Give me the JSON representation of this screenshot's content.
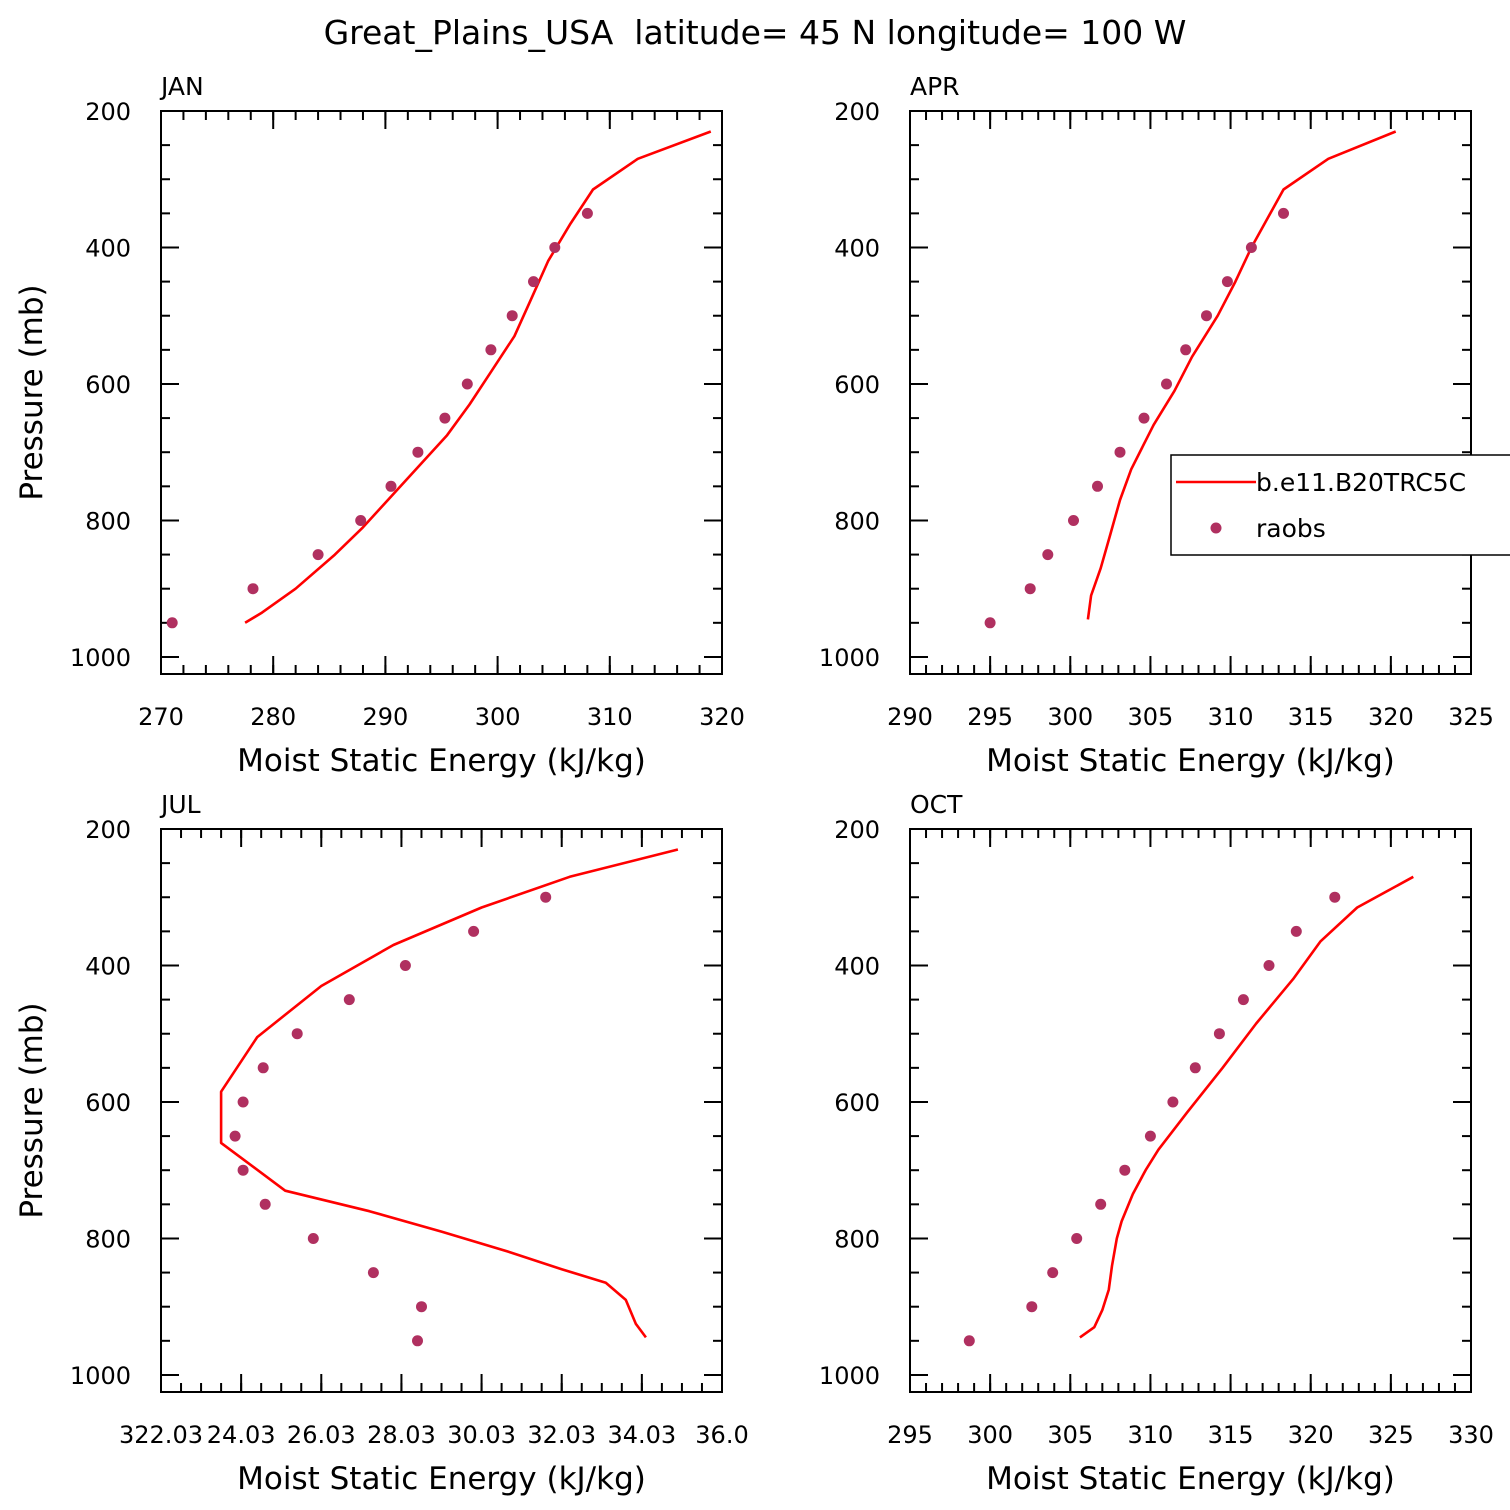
{
  "figure": {
    "title": "Great_Plains_USA  latitude= 45 N longitude= 100 W",
    "colors": {
      "model": "#ff0000",
      "obs": "#b03060",
      "axis": "#000000"
    }
  },
  "chart_data": [
    {
      "type": "scatter",
      "panel_title": "JAN",
      "xlabel": "Moist Static Energy (kJ/kg)",
      "ylabel": "Pressure (mb)",
      "xlim": [
        270,
        320
      ],
      "ylim": [
        1025,
        200
      ],
      "xticks": [
        270,
        280,
        290,
        300,
        310,
        320
      ],
      "xtick_labels": [
        "270",
        "280",
        "290",
        "300",
        "310",
        "320"
      ],
      "xminor": 2,
      "yticks": [
        200,
        400,
        600,
        800,
        1000
      ],
      "ytick_labels": [
        "200",
        "400",
        "600",
        "800",
        "1000"
      ],
      "series": [
        {
          "kind": "line",
          "x": [
            277.5,
            279,
            282,
            285.5,
            288,
            290.5,
            293,
            295.5,
            297.5,
            299.5,
            301.5,
            303,
            304.5,
            306.5,
            308.5,
            312.5,
            319
          ],
          "y": [
            950,
            935,
            900,
            850,
            810,
            765,
            720,
            675,
            630,
            580,
            530,
            475,
            420,
            365,
            315,
            270,
            230
          ]
        },
        {
          "kind": "points",
          "x": [
            271,
            278.2,
            284,
            287.8,
            290.5,
            292.9,
            295.3,
            297.3,
            299.4,
            301.3,
            303.2,
            305.1,
            308
          ],
          "y": [
            950,
            900,
            850,
            800,
            750,
            700,
            650,
            600,
            550,
            500,
            450,
            400,
            350
          ]
        }
      ]
    },
    {
      "type": "scatter",
      "panel_title": "APR",
      "xlabel": "Moist Static Energy (kJ/kg)",
      "ylabel": "",
      "xlim": [
        290,
        325
      ],
      "ylim": [
        1025,
        200
      ],
      "xticks": [
        290,
        295,
        300,
        305,
        310,
        315,
        320,
        325
      ],
      "xtick_labels": [
        "290",
        "295",
        "300",
        "305",
        "310",
        "315",
        "320",
        "325"
      ],
      "xminor": 1,
      "yticks": [
        200,
        400,
        600,
        800,
        1000
      ],
      "ytick_labels": [
        "200",
        "400",
        "600",
        "800",
        "1000"
      ],
      "legend": {
        "location": "right",
        "entries": [
          "b.e11.B20TRC5C",
          "raobs"
        ]
      },
      "series": [
        {
          "name": "b.e11.B20TRC5C",
          "kind": "line",
          "x": [
            301.1,
            301.3,
            301.9,
            302.5,
            303.1,
            303.8,
            305.2,
            306.5,
            307.6,
            309.2,
            310.3,
            311.3,
            313.3,
            316.1,
            320.3
          ],
          "y": [
            945,
            910,
            870,
            820,
            770,
            725,
            660,
            610,
            560,
            500,
            450,
            400,
            315,
            270,
            230
          ]
        },
        {
          "name": "raobs",
          "kind": "points",
          "x": [
            295,
            297.5,
            298.6,
            300.2,
            301.7,
            303.1,
            304.6,
            306,
            307.2,
            308.5,
            309.8,
            311.3,
            313.3
          ],
          "y": [
            950,
            900,
            850,
            800,
            750,
            700,
            650,
            600,
            550,
            500,
            450,
            400,
            350
          ]
        }
      ]
    },
    {
      "type": "scatter",
      "panel_title": "JUL",
      "xlabel": "Moist Static Energy (kJ/kg)",
      "ylabel": "Pressure (mb)",
      "xlim": [
        322.03,
        336.03
      ],
      "ylim": [
        1025,
        200
      ],
      "xticks": [
        322.03,
        324.03,
        326.03,
        328.03,
        330.03,
        332.03,
        334.03,
        336.03
      ],
      "xtick_labels": [
        "322.03",
        "24.03",
        "26.03",
        "28.03",
        "30.03",
        "32.03",
        "34.03",
        "36.0"
      ],
      "xminor": 0.5,
      "yticks": [
        200,
        400,
        600,
        800,
        1000
      ],
      "ytick_labels": [
        "200",
        "400",
        "600",
        "800",
        "1000"
      ],
      "series": [
        {
          "kind": "line",
          "x": [
            334.13,
            333.88,
            333.63,
            333.13,
            332.03,
            330.73,
            329.03,
            327.23,
            325.13,
            323.53,
            323.53,
            324.43,
            326.03,
            327.83,
            330.03,
            332.23,
            334.93
          ],
          "y": [
            945,
            925,
            890,
            865,
            845,
            820,
            790,
            760,
            730,
            660,
            585,
            505,
            430,
            370,
            315,
            270,
            230
          ]
        },
        {
          "kind": "points",
          "x": [
            328.43,
            328.53,
            327.33,
            325.83,
            324.63,
            324.08,
            323.88,
            324.08,
            324.58,
            325.43,
            326.73,
            328.13,
            329.83,
            331.63
          ],
          "y": [
            950,
            900,
            850,
            800,
            750,
            700,
            650,
            600,
            550,
            500,
            450,
            400,
            350,
            300
          ]
        }
      ]
    },
    {
      "type": "scatter",
      "panel_title": "OCT",
      "xlabel": "Moist Static Energy (kJ/kg)",
      "ylabel": "",
      "xlim": [
        295,
        330
      ],
      "ylim": [
        1025,
        200
      ],
      "xticks": [
        295,
        300,
        305,
        310,
        315,
        320,
        325,
        330
      ],
      "xtick_labels": [
        "295",
        "300",
        "305",
        "310",
        "315",
        "320",
        "325",
        "330"
      ],
      "xminor": 1,
      "yticks": [
        200,
        400,
        600,
        800,
        1000
      ],
      "ytick_labels": [
        "200",
        "400",
        "600",
        "800",
        "1000"
      ],
      "series": [
        {
          "kind": "line",
          "x": [
            305.6,
            306.5,
            307,
            307.4,
            307.6,
            307.9,
            308.2,
            308.9,
            309.7,
            310.5,
            312.3,
            314.5,
            316.6,
            318.9,
            320.6,
            322.9,
            326.4
          ],
          "y": [
            945,
            930,
            905,
            875,
            840,
            800,
            775,
            735,
            700,
            670,
            615,
            550,
            485,
            420,
            365,
            315,
            270
          ]
        },
        {
          "kind": "points",
          "x": [
            298.7,
            302.6,
            303.9,
            305.4,
            306.9,
            308.4,
            310,
            311.4,
            312.8,
            314.3,
            315.8,
            317.4,
            319.1,
            321.5
          ],
          "y": [
            950,
            900,
            850,
            800,
            750,
            700,
            650,
            600,
            550,
            500,
            450,
            400,
            350,
            300
          ]
        }
      ]
    }
  ]
}
